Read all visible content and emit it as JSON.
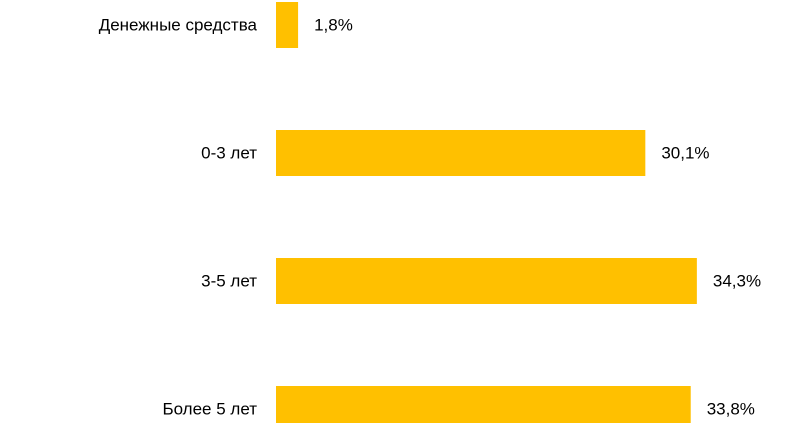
{
  "chart_data": {
    "type": "bar",
    "orientation": "horizontal",
    "categories": [
      "Денежные средства",
      "0-3 лет",
      "3-5 лет",
      "Более 5 лет"
    ],
    "values": [
      1.8,
      30.1,
      34.3,
      33.8
    ],
    "value_labels": [
      "1,8%",
      "30,1%",
      "34,3%",
      "33,8%"
    ],
    "unit": "%",
    "xlim": [
      0,
      34.3
    ],
    "grid": false,
    "legend": "none",
    "bar_color": "#FFC000"
  }
}
